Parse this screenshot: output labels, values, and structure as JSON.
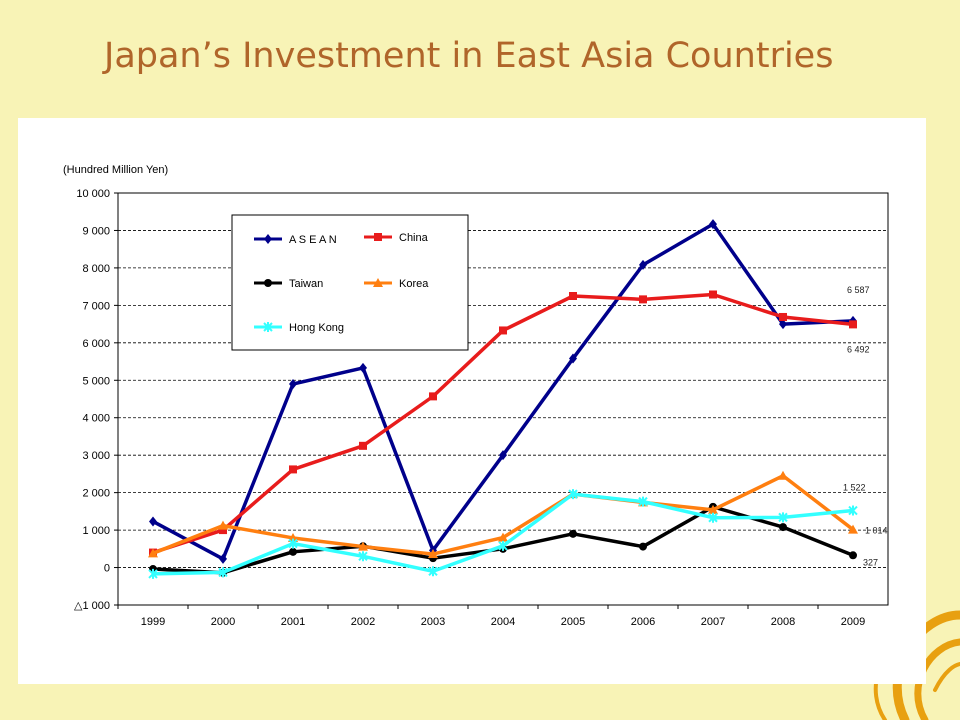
{
  "slide": {
    "title": "Japan’s Investment in East Asia Countries"
  },
  "colors": {
    "background": "#f8f3b6",
    "title": "#b0652a",
    "panel": "#ffffff"
  },
  "chart_data": {
    "type": "line",
    "ylabel": "(Hundred Million Yen)",
    "categories": [
      "1999",
      "2000",
      "2001",
      "2002",
      "2003",
      "2004",
      "2005",
      "2006",
      "2007",
      "2008",
      "2009"
    ],
    "ylim": [
      -1000,
      10000
    ],
    "yticks": [
      -1000,
      0,
      1000,
      2000,
      3000,
      4000,
      5000,
      6000,
      7000,
      8000,
      9000,
      10000
    ],
    "ytick_labels": [
      "△1 000",
      "0",
      "1 000",
      "2 000",
      "3 000",
      "4 000",
      "5 000",
      "6 000",
      "7 000",
      "8 000",
      "9 000",
      "10 000"
    ],
    "grid": true,
    "legend_position": "top-left, inside plot",
    "series": [
      {
        "name": "A S E A N",
        "color": "#00008b",
        "marker": "diamond",
        "values": [
          1230,
          230,
          4900,
          5330,
          460,
          3000,
          5580,
          8080,
          9170,
          6500,
          6587
        ]
      },
      {
        "name": "China",
        "color": "#e81c1c",
        "marker": "square",
        "values": [
          400,
          1000,
          2620,
          3250,
          4570,
          6330,
          7250,
          7160,
          7290,
          6690,
          6492
        ]
      },
      {
        "name": "Taiwan",
        "color": "#000000",
        "marker": "circle",
        "values": [
          -40,
          -140,
          420,
          570,
          250,
          500,
          900,
          560,
          1620,
          1080,
          327
        ]
      },
      {
        "name": "Korea",
        "color": "#ff7f10",
        "marker": "triangle",
        "values": [
          380,
          1120,
          790,
          560,
          360,
          800,
          1960,
          1740,
          1540,
          2450,
          1014
        ]
      },
      {
        "name": "Hong Kong",
        "color": "#33ffff",
        "marker": "star",
        "values": [
          -170,
          -130,
          640,
          300,
          -100,
          580,
          1960,
          1760,
          1330,
          1340,
          1522
        ]
      }
    ],
    "annotations": [
      {
        "text": "6 587",
        "series": "A S E A N",
        "category": "2009"
      },
      {
        "text": "6 492",
        "series": "China",
        "category": "2009"
      },
      {
        "text": "1 522",
        "series": "Hong Kong",
        "category": "2009"
      },
      {
        "text": "1 014",
        "series": "Korea",
        "category": "2009"
      },
      {
        "text": "327",
        "series": "Taiwan",
        "category": "2009"
      }
    ]
  }
}
